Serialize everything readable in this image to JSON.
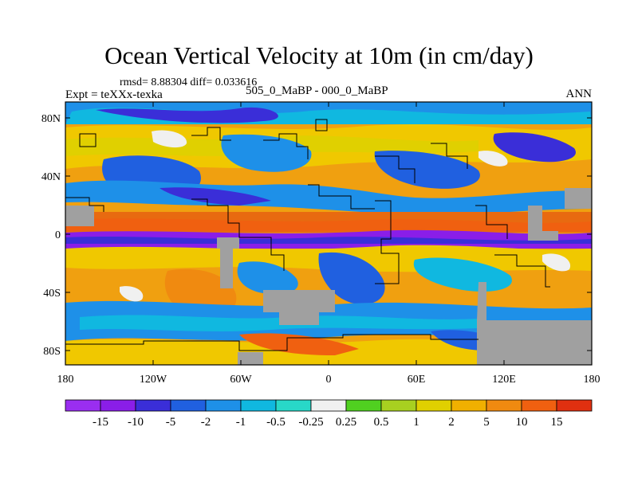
{
  "title": "Ocean Vertical Velocity at 10m (in cm/day)",
  "stats": "rmsd= 8.88304 diff= 0.033616",
  "left_label": "Expt = teXXx-texka",
  "center_label": "505_0_MaBP - 000_0_MaBP",
  "right_label": "ANN",
  "axes": {
    "lat_ticks": [
      "80N",
      "40N",
      "0",
      "40S",
      "80S"
    ],
    "lon_ticks": [
      "180",
      "120W",
      "60W",
      "0",
      "60E",
      "120E",
      "180"
    ]
  },
  "legend": {
    "labels": [
      "-15",
      "-10",
      "-5",
      "-2",
      "-1",
      "-0.5",
      "-0.25",
      "0.25",
      "0.5",
      "1",
      "2",
      "5",
      "10",
      "15"
    ],
    "colors": [
      "#8a1ee8",
      "#3a2ed8",
      "#2060e0",
      "#1e90e8",
      "#10b8e0",
      "#28d8c8",
      "#f0f0f0",
      "#50d020",
      "#a8d020",
      "#e0d000",
      "#f0b000",
      "#f08a10",
      "#f06010",
      "#e03010"
    ]
  },
  "chart_data": {
    "type": "heatmap",
    "title": "Ocean Vertical Velocity at 10m (in cm/day)",
    "variable": "vertical velocity difference",
    "units": "cm/day",
    "x_range": [
      -180,
      180
    ],
    "y_range": [
      -90,
      90
    ],
    "levels": [
      -15,
      -10,
      -5,
      -2,
      -1,
      -0.5,
      -0.25,
      0.25,
      0.5,
      1,
      2,
      5,
      10,
      15
    ]
  }
}
